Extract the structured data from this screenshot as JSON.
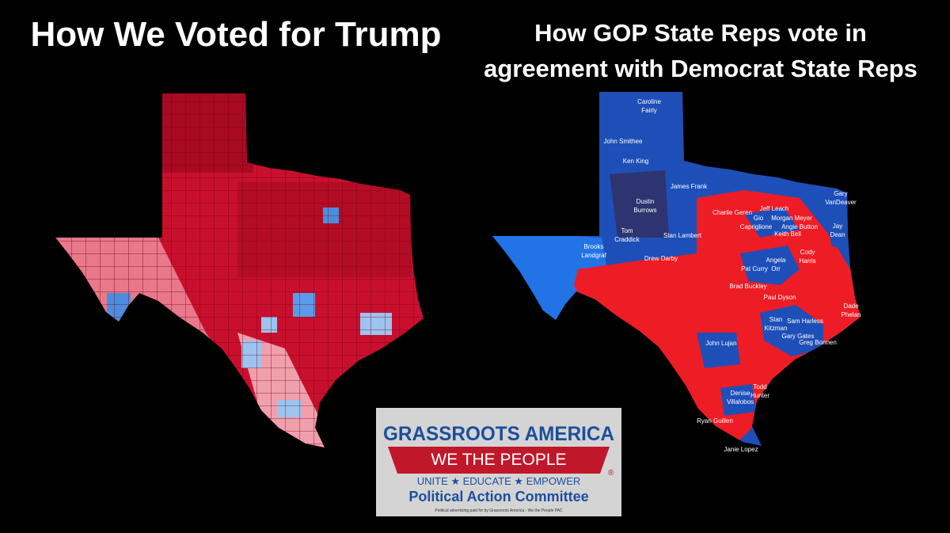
{
  "left": {
    "title": "How We Voted for Trump"
  },
  "right": {
    "title": [
      "How GOP State Reps vote in",
      "agreement with Democrat State Reps"
    ],
    "labels": [
      [
        "Caroline",
        "Fairly"
      ],
      [
        "John Smithee"
      ],
      [
        "Ken King"
      ],
      [
        "James Frank"
      ],
      [
        "Dustin",
        "Burrows"
      ],
      [
        "Gary",
        "VanDeaver"
      ],
      [
        "Charlie Geren"
      ],
      [
        "Jeff Leach"
      ],
      [
        "Gio"
      ],
      [
        "Morgan Meyer"
      ],
      [
        "Capriglione"
      ],
      [
        "Angie Button"
      ],
      [
        "Keith Bell"
      ],
      [
        "Jay",
        "Dean"
      ],
      [
        "Tom",
        "Craddick"
      ],
      [
        "Stan Lambert"
      ],
      [
        "Brooks",
        "Landgraf"
      ],
      [
        "Cody",
        "Harris"
      ],
      [
        "Drew Darby"
      ],
      [
        "Angela",
        "Orr"
      ],
      [
        "Pat Curry"
      ],
      [
        "Brad Buckley"
      ],
      [
        "Paul Dyson"
      ],
      [
        "Dade",
        "Phelan"
      ],
      [
        "Stan",
        "Kitzman"
      ],
      [
        "Sam Harless"
      ],
      [
        "Gary Gates"
      ],
      [
        "Greg Bonnen"
      ],
      [
        "John Lujan"
      ],
      [
        "Todd",
        "Hunter"
      ],
      [
        "Denise",
        "Villalobos"
      ],
      [
        "Ryan Guillen"
      ],
      [
        "Janie Lopez"
      ]
    ]
  },
  "logo": {
    "name": "GRASSROOTS AMERICA",
    "banner": "WE THE PEOPLE",
    "tagline": "UNITE ★ EDUCATE ★ EMPOWER",
    "registered": "®",
    "committee": "Political Action Committee",
    "disclaimer": "Political advertising paid for by Grassroots America - We the People PAC"
  }
}
